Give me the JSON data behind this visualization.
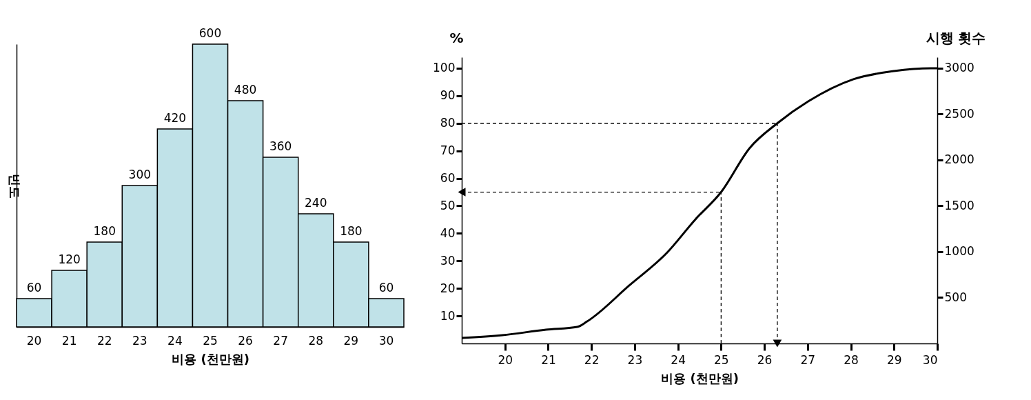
{
  "chart_data": [
    {
      "type": "bar",
      "categories": [
        "20",
        "21",
        "22",
        "23",
        "24",
        "25",
        "26",
        "27",
        "28",
        "29",
        "30"
      ],
      "values": [
        60,
        120,
        180,
        300,
        420,
        600,
        480,
        360,
        240,
        180,
        60
      ],
      "color": "#c0e2e8",
      "xlabel": "비용 (천만원)",
      "ylabel": "빈도",
      "data_labels": true,
      "tick_labels": "x"
    },
    {
      "type": "line",
      "x": [
        19,
        19.94,
        20.95,
        21.67,
        21.9,
        22.87,
        23.75,
        24.4,
        25,
        25.66,
        26.3,
        27.02,
        28.06,
        29,
        29.85,
        30
      ],
      "series": [
        {
          "color": "#000000",
          "values": [
            2,
            3,
            5,
            6,
            8,
            21,
            33,
            45,
            55,
            71,
            80,
            88,
            96,
            99,
            100,
            100
          ]
        }
      ],
      "xlim": [
        19,
        30
      ],
      "xticks": [
        20,
        21,
        22,
        23,
        24,
        25,
        26,
        27,
        28,
        29,
        30
      ],
      "ylim": [
        0,
        104
      ],
      "yticks": [
        10,
        20,
        30,
        40,
        50,
        60,
        70,
        80,
        90,
        100
      ],
      "y2lim": [
        0,
        3120
      ],
      "y2ticks": [
        500,
        1000,
        1500,
        2000,
        2500,
        3000
      ],
      "xlabel": "비용 (천만원)",
      "ylabel": "%",
      "y2label": "시행 횟수",
      "ref_lines": [
        {
          "axis": "x",
          "value": 25,
          "line_style": "dashed"
        },
        {
          "axis": "y",
          "value": 55,
          "line_style": "dashed"
        },
        {
          "axis": "y",
          "value": 80,
          "line_style": "dashed"
        },
        {
          "axis": "x",
          "value": 26.3,
          "line_style": "dashed"
        }
      ]
    }
  ]
}
